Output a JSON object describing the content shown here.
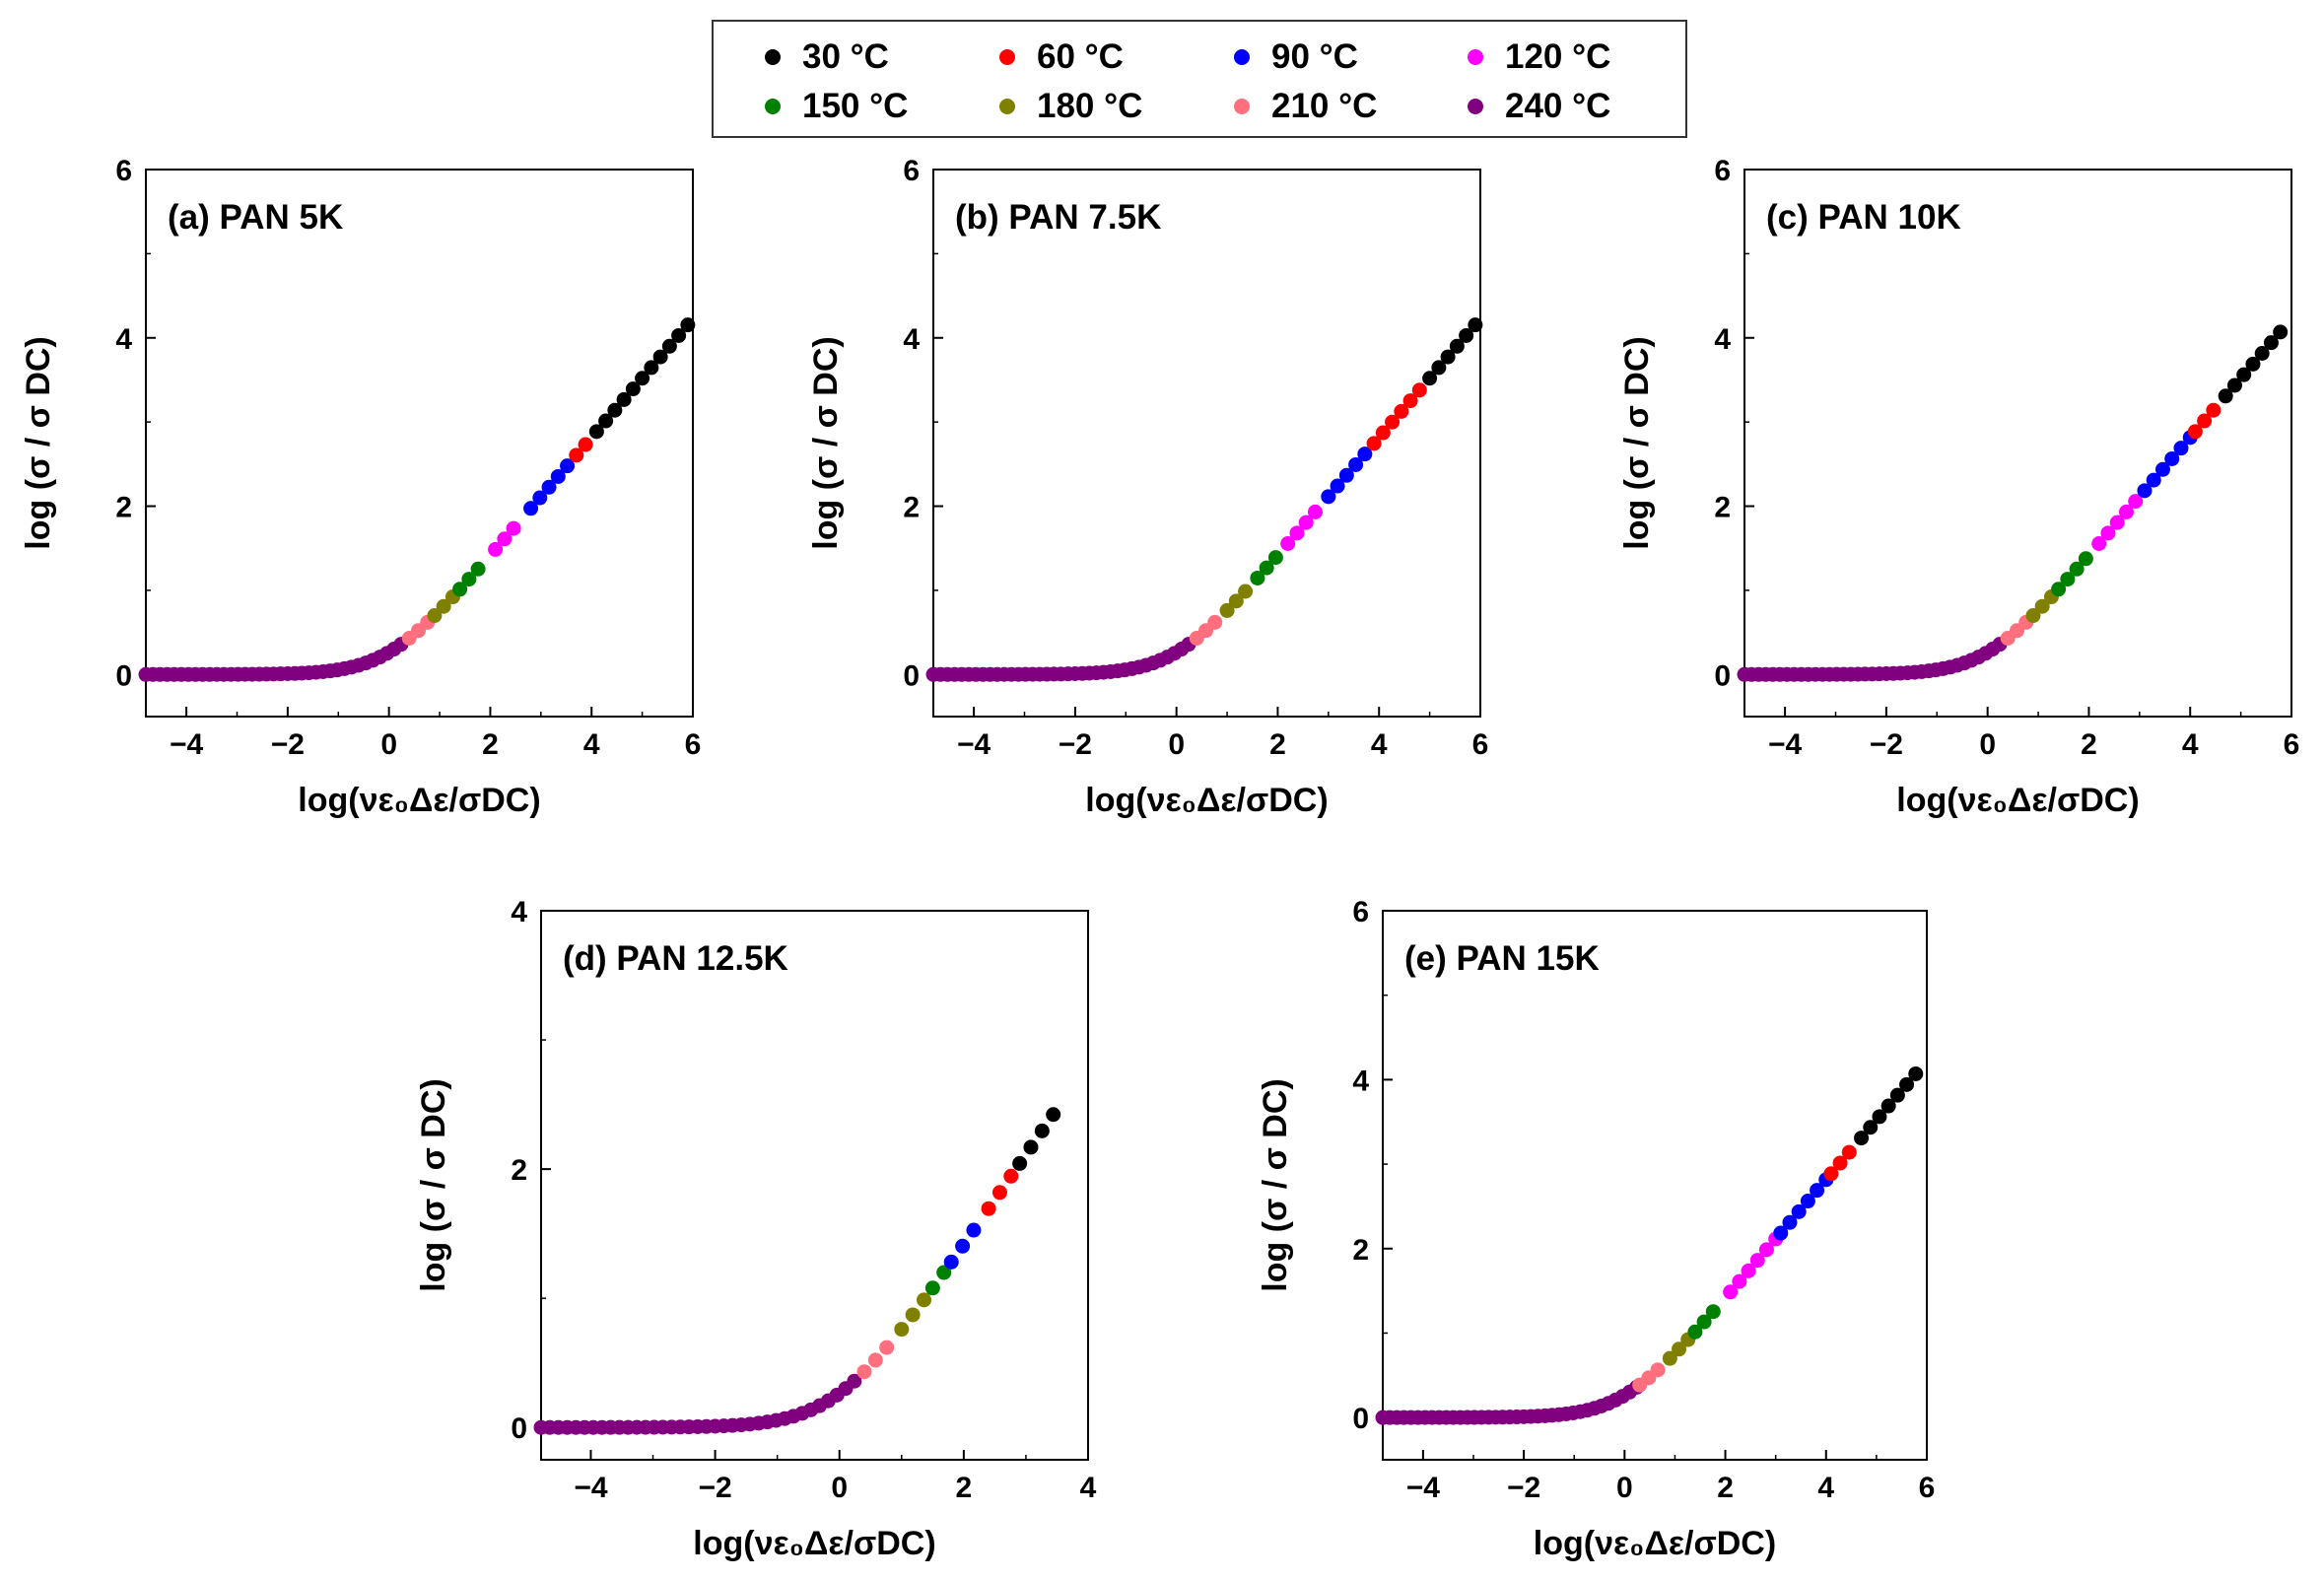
{
  "legend": {
    "items": [
      {
        "label": "30 °C",
        "color": "#000000"
      },
      {
        "label": "60 °C",
        "color": "#ff0000"
      },
      {
        "label": "90 °C",
        "color": "#0000ff"
      },
      {
        "label": "120 °C",
        "color": "#ff00ff"
      },
      {
        "label": "150 °C",
        "color": "#008000"
      },
      {
        "label": "180 °C",
        "color": "#808000"
      },
      {
        "label": "210 °C",
        "color": "#ff6f7d"
      },
      {
        "label": "240 °C",
        "color": "#800080"
      }
    ]
  },
  "chart_data": [
    {
      "type": "scatter",
      "title": "(a) PAN 5K",
      "xlabel": "log(νε₀Δε/σDC)",
      "ylabel": "log (σ / σ DC)",
      "xlim": [
        -4.8,
        6
      ],
      "ylim": [
        -0.5,
        6
      ],
      "xticks": [
        -4,
        -2,
        0,
        2,
        4,
        6
      ],
      "yticks": [
        0,
        2,
        4,
        6
      ],
      "series": [
        {
          "name": "240 °C",
          "x_range": [
            -4.8,
            0.3
          ]
        },
        {
          "name": "210 °C",
          "x_range": [
            0.4,
            0.8
          ]
        },
        {
          "name": "180 °C",
          "x_range": [
            0.9,
            1.3
          ]
        },
        {
          "name": "150 °C",
          "x_range": [
            1.4,
            1.9
          ]
        },
        {
          "name": "120 °C",
          "x_range": [
            2.1,
            2.6
          ]
        },
        {
          "name": "90 °C",
          "x_range": [
            2.8,
            3.6
          ]
        },
        {
          "name": "60 °C",
          "x_range": [
            3.7,
            4.0
          ]
        },
        {
          "name": "30 °C",
          "x_range": [
            4.1,
            5.9
          ]
        }
      ]
    },
    {
      "type": "scatter",
      "title": "(b) PAN 7.5K",
      "xlabel": "log(νε₀Δε/σDC)",
      "ylabel": "log (σ / σ DC)",
      "xlim": [
        -4.8,
        6
      ],
      "ylim": [
        -0.5,
        6
      ],
      "xticks": [
        -4,
        -2,
        0,
        2,
        4,
        6
      ],
      "yticks": [
        0,
        2,
        4,
        6
      ],
      "series": [
        {
          "name": "240 °C",
          "x_range": [
            -4.8,
            0.3
          ]
        },
        {
          "name": "210 °C",
          "x_range": [
            0.4,
            0.9
          ]
        },
        {
          "name": "180 °C",
          "x_range": [
            1.0,
            1.5
          ]
        },
        {
          "name": "150 °C",
          "x_range": [
            1.6,
            2.1
          ]
        },
        {
          "name": "120 °C",
          "x_range": [
            2.2,
            2.9
          ]
        },
        {
          "name": "90 °C",
          "x_range": [
            3.0,
            3.8
          ]
        },
        {
          "name": "60 °C",
          "x_range": [
            3.9,
            4.9
          ]
        },
        {
          "name": "30 °C",
          "x_range": [
            5.0,
            5.9
          ]
        }
      ]
    },
    {
      "type": "scatter",
      "title": "(c) PAN 10K",
      "xlabel": "log(νε₀Δε/σDC)",
      "ylabel": "log (σ / σ DC)",
      "xlim": [
        -4.8,
        6
      ],
      "ylim": [
        -0.5,
        6
      ],
      "xticks": [
        -4,
        -2,
        0,
        2,
        4,
        6
      ],
      "yticks": [
        0,
        2,
        4,
        6
      ],
      "series": [
        {
          "name": "240 °C",
          "x_range": [
            -4.8,
            0.3
          ]
        },
        {
          "name": "210 °C",
          "x_range": [
            0.4,
            0.8
          ]
        },
        {
          "name": "180 °C",
          "x_range": [
            0.9,
            1.3
          ]
        },
        {
          "name": "150 °C",
          "x_range": [
            1.4,
            2.0
          ]
        },
        {
          "name": "120 °C",
          "x_range": [
            2.2,
            3.0
          ]
        },
        {
          "name": "90 °C",
          "x_range": [
            3.1,
            4.0
          ]
        },
        {
          "name": "60 °C",
          "x_range": [
            4.1,
            4.6
          ]
        },
        {
          "name": "30 °C",
          "x_range": [
            4.7,
            5.9
          ]
        }
      ]
    },
    {
      "type": "scatter",
      "title": "(d) PAN 12.5K",
      "xlabel": "log(νε₀Δε/σDC)",
      "ylabel": "log (σ / σ DC)",
      "xlim": [
        -4.8,
        4
      ],
      "ylim": [
        -0.25,
        4
      ],
      "xticks": [
        -4,
        -2,
        0,
        2,
        4
      ],
      "yticks": [
        0,
        2,
        4
      ],
      "series": [
        {
          "name": "240 °C",
          "x_range": [
            -4.8,
            0.3
          ]
        },
        {
          "name": "210 °C",
          "x_range": [
            0.4,
            0.9
          ]
        },
        {
          "name": "180 °C",
          "x_range": [
            1.0,
            1.4
          ]
        },
        {
          "name": "150 °C",
          "x_range": [
            1.5,
            1.7
          ]
        },
        {
          "name": "90 °C",
          "x_range": [
            1.8,
            2.2
          ]
        },
        {
          "name": "60 °C",
          "x_range": [
            2.4,
            2.8
          ]
        },
        {
          "name": "30 °C",
          "x_range": [
            2.9,
            3.6
          ]
        }
      ]
    },
    {
      "type": "scatter",
      "title": "(e) PAN 15K",
      "xlabel": "log(νε₀Δε/σDC)",
      "ylabel": "log (σ / σ DC)",
      "xlim": [
        -4.8,
        6
      ],
      "ylim": [
        -0.5,
        6
      ],
      "xticks": [
        -4,
        -2,
        0,
        2,
        4,
        6
      ],
      "yticks": [
        0,
        2,
        4,
        6
      ],
      "series": [
        {
          "name": "240 °C",
          "x_range": [
            -4.8,
            0.3
          ]
        },
        {
          "name": "210 °C",
          "x_range": [
            0.3,
            0.8
          ]
        },
        {
          "name": "180 °C",
          "x_range": [
            0.9,
            1.3
          ]
        },
        {
          "name": "150 °C",
          "x_range": [
            1.4,
            1.9
          ]
        },
        {
          "name": "120 °C",
          "x_range": [
            2.1,
            3.0
          ]
        },
        {
          "name": "90 °C",
          "x_range": [
            3.1,
            4.0
          ]
        },
        {
          "name": "60 °C",
          "x_range": [
            4.1,
            4.6
          ]
        },
        {
          "name": "30 °C",
          "x_range": [
            4.7,
            5.9
          ]
        }
      ]
    }
  ]
}
